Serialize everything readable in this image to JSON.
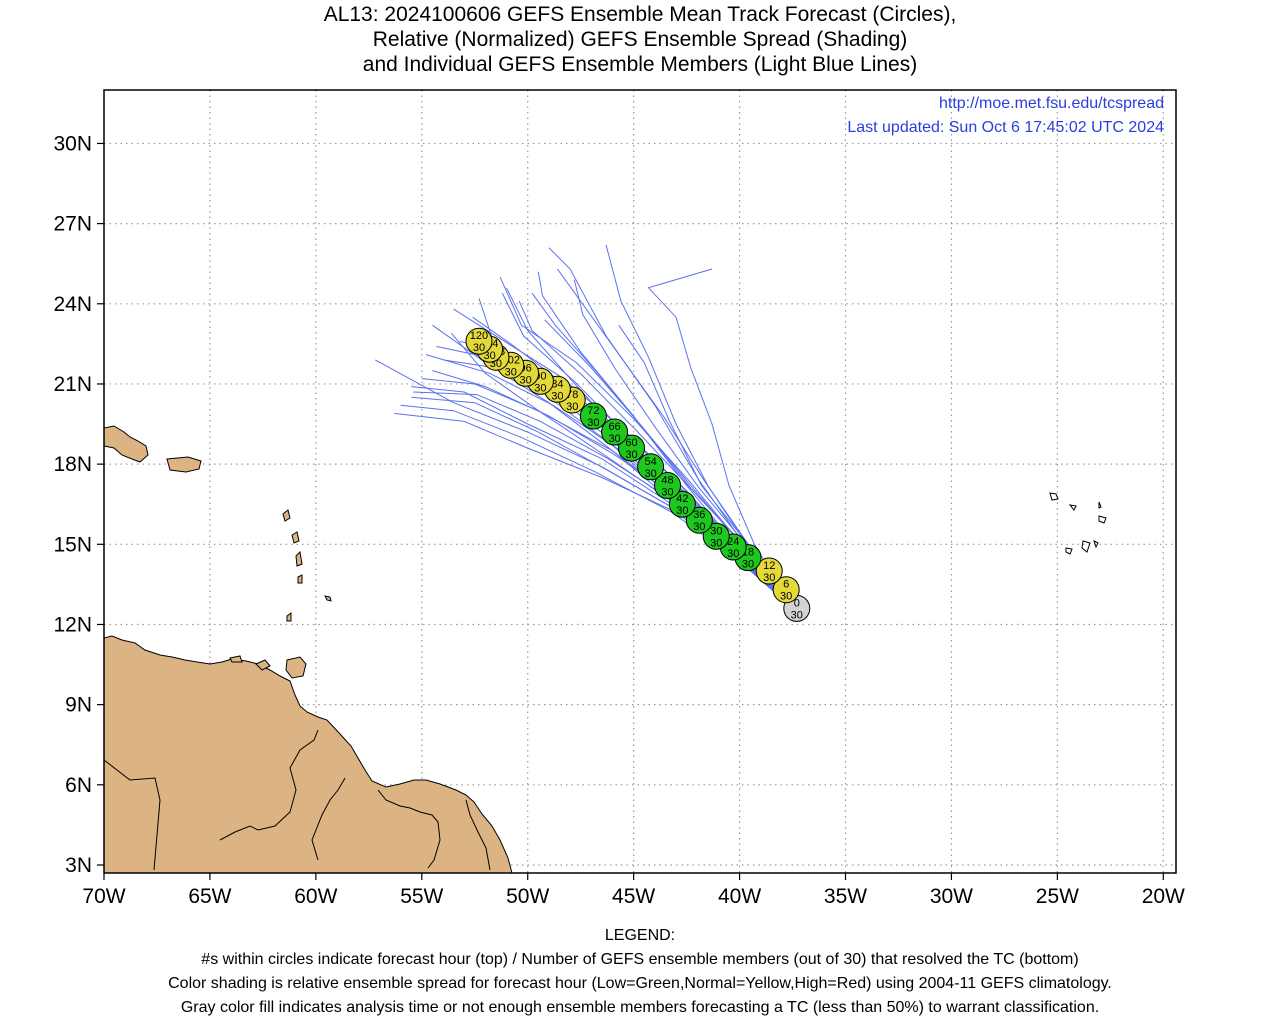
{
  "title": {
    "line1": "AL13: 2024100606 GEFS Ensemble Mean Track Forecast (Circles),",
    "line2": "Relative (Normalized) GEFS Ensemble Spread (Shading)",
    "line3": "and Individual GEFS Ensemble Members (Light Blue Lines)"
  },
  "credit": {
    "url": "http://moe.met.fsu.edu/tcspread",
    "updated": "Last updated: Sun Oct 6 17:45:02 UTC 2024"
  },
  "axes": {
    "lon_labels": [
      "70W",
      "65W",
      "60W",
      "55W",
      "50W",
      "45W",
      "40W",
      "35W",
      "30W",
      "25W",
      "20W"
    ],
    "lat_labels": [
      "3N",
      "6N",
      "9N",
      "12N",
      "15N",
      "18N",
      "21N",
      "24N",
      "27N",
      "30N"
    ],
    "lon_range": [
      -70,
      -19.4
    ],
    "lat_range": [
      2.7,
      32.0
    ],
    "grid": "dotted"
  },
  "colors": {
    "land": "#dcb484",
    "member_tracks": "#5a72ee",
    "low_spread": "#1ec81e",
    "normal_spread": "#e3d93a",
    "analysis": "#d3d3d3",
    "credit_text": "#2a3ee0"
  },
  "mean_track": [
    {
      "hour": "0",
      "members": "30",
      "lon": -37.3,
      "lat": 12.6,
      "spread": "gray"
    },
    {
      "hour": "6",
      "members": "30",
      "lon": -37.8,
      "lat": 13.3,
      "spread": "yellow"
    },
    {
      "hour": "12",
      "members": "30",
      "lon": -38.6,
      "lat": 14.0,
      "spread": "yellow"
    },
    {
      "hour": "18",
      "members": "30",
      "lon": -39.6,
      "lat": 14.5,
      "spread": "green"
    },
    {
      "hour": "24",
      "members": "30",
      "lon": -40.3,
      "lat": 14.9,
      "spread": "green"
    },
    {
      "hour": "30",
      "members": "30",
      "lon": -41.1,
      "lat": 15.3,
      "spread": "green"
    },
    {
      "hour": "36",
      "members": "30",
      "lon": -41.9,
      "lat": 15.9,
      "spread": "green"
    },
    {
      "hour": "42",
      "members": "30",
      "lon": -42.7,
      "lat": 16.5,
      "spread": "green"
    },
    {
      "hour": "48",
      "members": "30",
      "lon": -43.4,
      "lat": 17.2,
      "spread": "green"
    },
    {
      "hour": "54",
      "members": "30",
      "lon": -44.2,
      "lat": 17.9,
      "spread": "green"
    },
    {
      "hour": "60",
      "members": "30",
      "lon": -45.1,
      "lat": 18.6,
      "spread": "green"
    },
    {
      "hour": "66",
      "members": "30",
      "lon": -45.9,
      "lat": 19.2,
      "spread": "green"
    },
    {
      "hour": "72",
      "members": "30",
      "lon": -46.9,
      "lat": 19.8,
      "spread": "green"
    },
    {
      "hour": "78",
      "members": "30",
      "lon": -47.9,
      "lat": 20.4,
      "spread": "yellow"
    },
    {
      "hour": "84",
      "members": "30",
      "lon": -48.6,
      "lat": 20.8,
      "spread": "yellow"
    },
    {
      "hour": "90",
      "members": "30",
      "lon": -49.4,
      "lat": 21.1,
      "spread": "yellow"
    },
    {
      "hour": "96",
      "members": "30",
      "lon": -50.1,
      "lat": 21.4,
      "spread": "yellow"
    },
    {
      "hour": "102",
      "members": "30",
      "lon": -50.8,
      "lat": 21.7,
      "spread": "yellow"
    },
    {
      "hour": "108",
      "members": "30",
      "lon": -51.5,
      "lat": 22.0,
      "spread": "yellow"
    },
    {
      "hour": "114",
      "members": "30",
      "lon": -51.8,
      "lat": 22.3,
      "spread": "yellow"
    },
    {
      "hour": "120",
      "members": "30",
      "lon": -52.3,
      "lat": 22.6,
      "spread": "yellow"
    }
  ],
  "member_tracks": [
    [
      [
        -37.5,
        12.6
      ],
      [
        -40,
        14.6
      ],
      [
        -43,
        16.5
      ],
      [
        -46,
        18.5
      ],
      [
        -49,
        20.3
      ],
      [
        -52,
        21.8
      ],
      [
        -54.5,
        23.2
      ]
    ],
    [
      [
        -37.5,
        12.6
      ],
      [
        -40,
        14.5
      ],
      [
        -43,
        16.6
      ],
      [
        -46,
        18.7
      ],
      [
        -49,
        20.5
      ],
      [
        -51.5,
        22.3
      ],
      [
        -52.3,
        24.2
      ]
    ],
    [
      [
        -37.5,
        12.6
      ],
      [
        -40,
        14.5
      ],
      [
        -42.8,
        16.8
      ],
      [
        -45.5,
        19
      ],
      [
        -48,
        21.2
      ],
      [
        -50,
        23
      ],
      [
        -51,
        24.6
      ]
    ],
    [
      [
        -37.5,
        12.6
      ],
      [
        -39.8,
        14.6
      ],
      [
        -42.5,
        17.2
      ],
      [
        -45,
        19.8
      ],
      [
        -47.5,
        22.2
      ],
      [
        -49.3,
        24.3
      ],
      [
        -49.5,
        25.2
      ]
    ],
    [
      [
        -37.5,
        12.6
      ],
      [
        -39.6,
        14.8
      ],
      [
        -42,
        17.5
      ],
      [
        -44,
        20.2
      ],
      [
        -46.3,
        22.8
      ],
      [
        -48,
        25.3
      ],
      [
        -49,
        26.1
      ]
    ],
    [
      [
        -37.5,
        12.6
      ],
      [
        -39.5,
        14.8
      ],
      [
        -41.5,
        17.2
      ],
      [
        -43,
        19.5
      ],
      [
        -44.3,
        22
      ],
      [
        -45.6,
        24.1
      ],
      [
        -46.3,
        26.2
      ]
    ],
    [
      [
        -37.5,
        12.6
      ],
      [
        -39.3,
        15
      ],
      [
        -40.5,
        17.2
      ],
      [
        -41.3,
        19.5
      ],
      [
        -42.3,
        21.6
      ],
      [
        -43,
        23.5
      ],
      [
        -44.3,
        24.6
      ],
      [
        -41.3,
        25.3
      ]
    ],
    [
      [
        -37.5,
        12.6
      ],
      [
        -39.8,
        14.3
      ],
      [
        -43,
        16.2
      ],
      [
        -46.5,
        17.5
      ],
      [
        -50,
        18.6
      ],
      [
        -53,
        19.6
      ],
      [
        -56.3,
        19.9
      ]
    ],
    [
      [
        -37.5,
        12.6
      ],
      [
        -39.8,
        14.4
      ],
      [
        -43,
        16.4
      ],
      [
        -46.5,
        18.2
      ],
      [
        -50,
        19.5
      ],
      [
        -53,
        20.7
      ],
      [
        -55.5,
        20.9
      ]
    ],
    [
      [
        -37.5,
        12.6
      ],
      [
        -39.8,
        14.4
      ],
      [
        -43,
        16.3
      ],
      [
        -46.5,
        17.9
      ],
      [
        -50,
        19.2
      ],
      [
        -53.5,
        20.3
      ],
      [
        -57.2,
        21.9
      ]
    ],
    [
      [
        -37.5,
        12.6
      ],
      [
        -39.8,
        14.5
      ],
      [
        -42.8,
        16.6
      ],
      [
        -46,
        18.5
      ],
      [
        -49.5,
        20
      ],
      [
        -52.5,
        21
      ],
      [
        -55,
        21.2
      ]
    ],
    [
      [
        -37.5,
        12.6
      ],
      [
        -40,
        14.4
      ],
      [
        -43,
        16.3
      ],
      [
        -46.3,
        17.8
      ],
      [
        -49.5,
        19.2
      ],
      [
        -52.5,
        20.3
      ],
      [
        -55.5,
        20.5
      ]
    ],
    [
      [
        -37.5,
        12.6
      ],
      [
        -39.8,
        14.6
      ],
      [
        -42.5,
        17
      ],
      [
        -45.5,
        19.3
      ],
      [
        -48.5,
        21.3
      ],
      [
        -51.5,
        22.8
      ],
      [
        -53.5,
        23.8
      ]
    ],
    [
      [
        -37.5,
        12.6
      ],
      [
        -39.6,
        14.7
      ],
      [
        -42.3,
        17.3
      ],
      [
        -45,
        19.7
      ],
      [
        -47.7,
        21.8
      ],
      [
        -50.3,
        23.2
      ],
      [
        -51.3,
        25
      ]
    ],
    [
      [
        -37.5,
        12.6
      ],
      [
        -39.8,
        14.5
      ],
      [
        -42.8,
        16.7
      ],
      [
        -46,
        18.4
      ],
      [
        -49,
        19.8
      ],
      [
        -52,
        20.9
      ],
      [
        -54.5,
        21.5
      ]
    ],
    [
      [
        -37.5,
        12.6
      ],
      [
        -39.6,
        14.8
      ],
      [
        -42.3,
        17.1
      ],
      [
        -44.5,
        19.3
      ],
      [
        -46.8,
        21.5
      ],
      [
        -48.7,
        23.2
      ],
      [
        -49.8,
        24.4
      ]
    ],
    [
      [
        -37.5,
        12.6
      ],
      [
        -39.5,
        14.9
      ],
      [
        -41.8,
        17.2
      ],
      [
        -43.3,
        19.6
      ],
      [
        -44.5,
        21.8
      ],
      [
        -45.7,
        23.2
      ]
    ],
    [
      [
        -37.5,
        12.6
      ],
      [
        -39.7,
        14.6
      ],
      [
        -42.5,
        16.9
      ],
      [
        -45.5,
        18.9
      ],
      [
        -48.5,
        20.5
      ],
      [
        -51.5,
        21.6
      ],
      [
        -54,
        21.9
      ]
    ],
    [
      [
        -37.5,
        12.6
      ],
      [
        -39.9,
        14.4
      ],
      [
        -43,
        16.5
      ],
      [
        -46.3,
        18.3
      ],
      [
        -49.3,
        19.9
      ],
      [
        -52,
        21.4
      ],
      [
        -53.6,
        22.9
      ]
    ],
    [
      [
        -37.5,
        12.6
      ],
      [
        -39.7,
        14.6
      ],
      [
        -42.6,
        16.9
      ],
      [
        -45.6,
        19.1
      ],
      [
        -48.3,
        21
      ],
      [
        -50.8,
        22.5
      ],
      [
        -52.6,
        23.5
      ]
    ],
    [
      [
        -37.5,
        12.6
      ],
      [
        -39.5,
        14.9
      ],
      [
        -41.6,
        17.3
      ],
      [
        -43.6,
        19.8
      ],
      [
        -45.6,
        22
      ],
      [
        -47.6,
        24.2
      ],
      [
        -48.6,
        25.3
      ]
    ],
    [
      [
        -37.5,
        12.6
      ],
      [
        -39.8,
        14.5
      ],
      [
        -42.7,
        16.6
      ],
      [
        -45.8,
        18.6
      ],
      [
        -48.8,
        20.2
      ],
      [
        -51.8,
        21.4
      ],
      [
        -54.8,
        22.1
      ]
    ],
    [
      [
        -37.5,
        12.6
      ],
      [
        -39.6,
        14.8
      ],
      [
        -42.2,
        17
      ],
      [
        -44.8,
        19.2
      ],
      [
        -47.4,
        21.3
      ],
      [
        -49.8,
        23
      ],
      [
        -50.4,
        24.1
      ]
    ],
    [
      [
        -37.5,
        12.6
      ],
      [
        -39.9,
        14.3
      ],
      [
        -43.2,
        16.2
      ],
      [
        -46.8,
        17.7
      ],
      [
        -50.3,
        19
      ],
      [
        -53.5,
        20
      ],
      [
        -56,
        20.2
      ]
    ],
    [
      [
        -37.5,
        12.6
      ],
      [
        -39.7,
        14.6
      ],
      [
        -42.4,
        16.9
      ],
      [
        -45.2,
        19
      ],
      [
        -47.8,
        21.1
      ],
      [
        -50.2,
        22.8
      ],
      [
        -51.2,
        24.4
      ]
    ],
    [
      [
        -37.5,
        12.6
      ],
      [
        -39.6,
        14.7
      ],
      [
        -42.2,
        17.1
      ],
      [
        -44.6,
        19.4
      ],
      [
        -47,
        21.6
      ],
      [
        -49.2,
        23.4
      ]
    ],
    [
      [
        -37.5,
        12.6
      ],
      [
        -39.8,
        14.5
      ],
      [
        -42.8,
        16.7
      ],
      [
        -45.9,
        18.8
      ],
      [
        -48.9,
        20.7
      ],
      [
        -51.9,
        22
      ],
      [
        -54.3,
        22.4
      ]
    ],
    [
      [
        -37.5,
        12.6
      ],
      [
        -39.5,
        14.8
      ],
      [
        -41.9,
        17.1
      ],
      [
        -44,
        19.4
      ],
      [
        -45.9,
        21.6
      ],
      [
        -47.4,
        23.6
      ],
      [
        -47.8,
        24.9
      ]
    ],
    [
      [
        -37.5,
        12.6
      ],
      [
        -39.8,
        14.5
      ],
      [
        -42.9,
        16.5
      ],
      [
        -46.2,
        18.2
      ],
      [
        -49.4,
        19.6
      ],
      [
        -52.4,
        20.6
      ],
      [
        -55.4,
        20.7
      ]
    ],
    [
      [
        -37.5,
        12.6
      ],
      [
        -39.7,
        14.6
      ],
      [
        -42.5,
        16.8
      ],
      [
        -45.5,
        18.8
      ],
      [
        -48.4,
        20.6
      ],
      [
        -51.1,
        22.1
      ],
      [
        -53.2,
        22.6
      ]
    ]
  ],
  "legend": {
    "heading": "LEGEND:",
    "line1": "#s within circles indicate forecast hour (top) / Number of GEFS ensemble members (out of 30) that resolved the TC (bottom)",
    "line2": "Color shading is relative ensemble spread for forecast hour (Low=Green,Normal=Yellow,High=Red) using 2004-11 GEFS climatology.",
    "line3": "Gray color fill indicates analysis time or not enough ensemble members forecasting a TC (less than 50%) to warrant classification."
  }
}
